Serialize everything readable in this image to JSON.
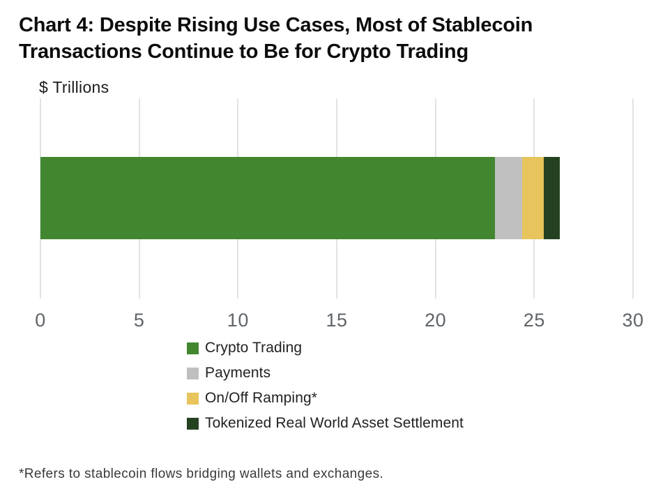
{
  "title": {
    "line1": "Chart 4: Despite Rising Use Cases, Most of Stablecoin",
    "line2": "Transactions Continue to Be for Crypto Trading"
  },
  "axis_unit_label": "$ Trillions",
  "footnote": "*Refers to stablecoin flows bridging wallets and exchanges.",
  "colors": {
    "gridline": "#e3e3e3",
    "tick_text": "#5f6468",
    "legend_text": "#222222",
    "crypto_trading": "#428730",
    "payments": "#bfc0bf",
    "on_off_ramping": "#e7c55c",
    "tokenized_rwa": "#254220"
  },
  "chart_data": {
    "type": "bar",
    "orientation": "horizontal",
    "stacked": true,
    "title": "Chart 4: Despite Rising Use Cases, Most of Stablecoin Transactions Continue to Be for Crypto Trading",
    "unit_label": "$ Trillions",
    "xlabel": "",
    "ylabel": "$ Trillions",
    "xlim": [
      0,
      30
    ],
    "x_ticks": [
      0,
      5,
      10,
      15,
      20,
      25,
      30
    ],
    "grid": "vertical",
    "legend_position": "bottom",
    "categories": [
      "Stablecoin Transactions"
    ],
    "series": [
      {
        "name": "Crypto Trading",
        "value": 23.0,
        "color": "#428730"
      },
      {
        "name": "Payments",
        "value": 1.4,
        "color": "#bfc0bf"
      },
      {
        "name": "On/Off Ramping*",
        "value": 1.1,
        "color": "#e7c55c"
      },
      {
        "name": "Tokenized Real World Asset Settlement",
        "value": 0.8,
        "color": "#254220"
      }
    ],
    "total": 26.3,
    "footnote": "*Refers to stablecoin flows bridging wallets and exchanges."
  }
}
